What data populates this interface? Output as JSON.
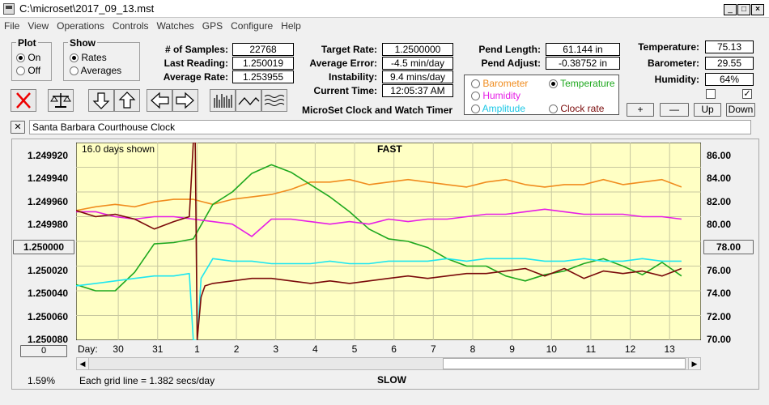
{
  "window": {
    "title": "C:\\microset\\2017_09_13.mst"
  },
  "menu": [
    "File",
    "View",
    "Operations",
    "Controls",
    "Watches",
    "GPS",
    "Configure",
    "Help"
  ],
  "plot_group": {
    "title": "Plot",
    "on": "On",
    "off": "Off",
    "selected": "On"
  },
  "show_group": {
    "title": "Show",
    "rates": "Rates",
    "averages": "Averages",
    "selected": "Rates"
  },
  "stats": {
    "samples_label": "# of Samples:",
    "samples": "22768",
    "last_label": "Last Reading:",
    "last": "1.250019",
    "avg_label": "Average Rate:",
    "avg": "1.253955",
    "target_label": "Target Rate:",
    "target": "1.2500000",
    "err_label": "Average Error:",
    "err": "-4.5 min/day",
    "instab_label": "Instability:",
    "instab": "9.4 mins/day",
    "time_label": "Current Time:",
    "time": "12:05:37 AM",
    "pend_len_label": "Pend Length:",
    "pend_len": "61.144 in",
    "pend_adj_label": "Pend Adjust:",
    "pend_adj": "-0.38752 in",
    "temp_label": "Temperature:",
    "temp": "75.13",
    "baro_label": "Barometer:",
    "baro": "29.55",
    "hum_label": "Humidity:",
    "hum": "64%"
  },
  "app_name": "MicroSet Clock and Watch Timer",
  "sensor_options": {
    "barometer": "Barometer",
    "temperature": "Temperature",
    "humidity": "Humidity",
    "amplitude": "Amplitude",
    "clock_rate": "Clock rate",
    "selected": "Temperature"
  },
  "right_buttons": {
    "plus": "+",
    "minus": "—",
    "up": "Up",
    "down": "Down"
  },
  "close_x": "✕",
  "description": "Santa Barbara Courthouse Clock",
  "chart_labels": {
    "days_shown": "16.0 days shown",
    "fast": "FAST",
    "slow": "SLOW",
    "grid_note": "Each grid line = 1.382 secs/day",
    "day_label": "Day:",
    "percent": "1.59%",
    "center_left_btn": "1.250000",
    "center_right_btn": "78.00",
    "zero_btn": "0"
  },
  "colors": {
    "plot_bg": "#ffffc4",
    "barometer": "#f08c1e",
    "temperature": "#1ea81e",
    "humidity": "#e61ee6",
    "amplitude": "#1ee6f0",
    "clock_rate": "#7a0a0a"
  },
  "chart_data": {
    "type": "line",
    "left_axis_ticks": [
      "1.249920",
      "1.249940",
      "1.249960",
      "1.249980",
      "1.250000",
      "1.250020",
      "1.250040",
      "1.250060",
      "1.250080"
    ],
    "right_axis_ticks": [
      "86.00",
      "84.00",
      "82.00",
      "80.00",
      "78.00",
      "76.00",
      "74.00",
      "72.00",
      "70.00"
    ],
    "left_ylim": [
      1.24992,
      1.25008
    ],
    "right_ylim": [
      70,
      86
    ],
    "x_day_ticks": [
      "30",
      "31",
      "1",
      "2",
      "3",
      "4",
      "5",
      "6",
      "7",
      "8",
      "9",
      "10",
      "11",
      "12",
      "13"
    ],
    "xlim_days": [
      0,
      16
    ],
    "grid": true,
    "series": [
      {
        "name": "Barometer",
        "axis": "left",
        "color": "#f08c1e",
        "x": [
          0,
          0.5,
          1,
          1.5,
          2,
          2.5,
          3,
          3.5,
          4,
          4.5,
          5,
          5.5,
          6,
          6.5,
          7,
          7.5,
          8,
          8.5,
          9,
          9.5,
          10,
          10.5,
          11,
          11.5,
          12,
          12.5,
          13,
          13.5,
          14,
          14.5,
          15,
          15.5
        ],
        "y": [
          1.249975,
          1.249972,
          1.24997,
          1.249972,
          1.249968,
          1.249966,
          1.249966,
          1.24997,
          1.249966,
          1.249964,
          1.249962,
          1.249958,
          1.249952,
          1.249952,
          1.24995,
          1.249954,
          1.249952,
          1.24995,
          1.249952,
          1.249954,
          1.249956,
          1.249952,
          1.24995,
          1.249954,
          1.249956,
          1.249954,
          1.249954,
          1.24995,
          1.249954,
          1.249952,
          1.24995,
          1.249956
        ]
      },
      {
        "name": "Temperature",
        "axis": "right",
        "color": "#1ea81e",
        "x": [
          0,
          0.5,
          1,
          1.5,
          2,
          2.5,
          3,
          3.5,
          4,
          4.5,
          5,
          5.5,
          6,
          6.5,
          7,
          7.5,
          8,
          8.5,
          9,
          9.5,
          10,
          10.5,
          11,
          11.5,
          12,
          12.5,
          13,
          13.5,
          14,
          14.5,
          15,
          15.5
        ],
        "y": [
          74.5,
          74.0,
          74.0,
          75.5,
          77.8,
          77.9,
          78.2,
          81.0,
          82.0,
          83.5,
          84.2,
          83.6,
          82.6,
          81.6,
          80.4,
          79.0,
          78.2,
          78.0,
          77.5,
          76.6,
          76.0,
          76.0,
          75.2,
          74.8,
          75.3,
          75.6,
          76.2,
          76.6,
          76.0,
          75.3,
          76.3,
          75.2
        ]
      },
      {
        "name": "Humidity",
        "axis": "left",
        "color": "#e61ee6",
        "x": [
          0,
          0.5,
          1,
          1.5,
          2,
          2.5,
          3,
          3.5,
          4,
          4.5,
          5,
          5.5,
          6,
          6.5,
          7,
          7.5,
          8,
          8.5,
          9,
          9.5,
          10,
          10.5,
          11,
          11.5,
          12,
          12.5,
          13,
          13.5,
          14,
          14.5,
          15,
          15.5
        ],
        "y": [
          1.249976,
          1.249976,
          1.24998,
          1.249982,
          1.24998,
          1.24998,
          1.249982,
          1.249984,
          1.249986,
          1.249996,
          1.249982,
          1.249982,
          1.249984,
          1.249986,
          1.249984,
          1.249986,
          1.249982,
          1.249984,
          1.249982,
          1.249982,
          1.24998,
          1.249978,
          1.249978,
          1.249976,
          1.249974,
          1.249976,
          1.249978,
          1.249978,
          1.249978,
          1.24998,
          1.24998,
          1.249982
        ]
      },
      {
        "name": "Amplitude",
        "axis": "left",
        "color": "#1ee6f0",
        "x": [
          0,
          0.5,
          1,
          1.5,
          2,
          2.5,
          2.9,
          3.0,
          3.1,
          3.2,
          3.5,
          4,
          4.5,
          5,
          5.5,
          6,
          6.5,
          7,
          7.5,
          8,
          8.5,
          9,
          9.5,
          10,
          10.5,
          11,
          11.5,
          12,
          12.5,
          13,
          13.5,
          14,
          14.5,
          15,
          15.5
        ],
        "y": [
          1.250036,
          1.250034,
          1.250032,
          1.25003,
          1.250028,
          1.250028,
          1.250026,
          1.25008,
          1.25008,
          1.25003,
          1.250014,
          1.250016,
          1.250016,
          1.250018,
          1.250018,
          1.250018,
          1.250016,
          1.250018,
          1.250018,
          1.250016,
          1.250016,
          1.250016,
          1.250014,
          1.250016,
          1.250014,
          1.250014,
          1.250014,
          1.250016,
          1.250016,
          1.250014,
          1.250016,
          1.250016,
          1.250014,
          1.250016,
          1.250016
        ]
      },
      {
        "name": "Clock rate",
        "axis": "left",
        "color": "#7a0a0a",
        "x": [
          0,
          0.5,
          1,
          1.5,
          2,
          2.5,
          2.9,
          3.0,
          3.05,
          3.1,
          3.2,
          3.3,
          3.5,
          4,
          4.5,
          5,
          5.5,
          6,
          6.5,
          7,
          7.5,
          8,
          8.5,
          9,
          9.5,
          10,
          10.5,
          11,
          11.5,
          12,
          12.5,
          13,
          13.5,
          14,
          14.5,
          15,
          15.5
        ],
        "y": [
          1.249975,
          1.24998,
          1.249978,
          1.249982,
          1.24999,
          1.249984,
          1.24998,
          1.24992,
          1.24992,
          1.25008,
          1.250045,
          1.250036,
          1.250034,
          1.250032,
          1.25003,
          1.25003,
          1.250032,
          1.250034,
          1.250032,
          1.250034,
          1.250032,
          1.25003,
          1.250028,
          1.25003,
          1.250028,
          1.250026,
          1.250026,
          1.250024,
          1.250022,
          1.250028,
          1.250022,
          1.25003,
          1.250024,
          1.250026,
          1.250024,
          1.250028,
          1.250022
        ]
      }
    ]
  }
}
